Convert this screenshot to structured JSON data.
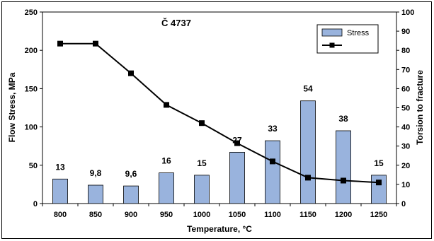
{
  "chart_data": {
    "type": "bar",
    "title": "Č 4737",
    "xlabel": "Temperature, °C",
    "ylabel": "Flow Stress, MPa",
    "y2label": "Torsion to fracture",
    "categories": [
      "800",
      "850",
      "900",
      "950",
      "1000",
      "1050",
      "1100",
      "1150",
      "1200",
      "1250"
    ],
    "ylim": [
      0,
      250
    ],
    "yticks": [
      "0",
      "50",
      "100",
      "150",
      "200",
      "250"
    ],
    "y2lim": [
      0,
      100
    ],
    "y2ticks": [
      "0",
      "10",
      "20",
      "30",
      "40",
      "50",
      "60",
      "70",
      "80",
      "90",
      "100"
    ],
    "legend_position": "top-right",
    "series": [
      {
        "name": "Stress",
        "kind": "bar",
        "axis": "left",
        "color": "#99b3dd",
        "values": [
          32,
          24,
          23,
          40,
          37,
          67,
          82,
          134,
          95,
          37
        ],
        "labels": [
          "13",
          "9,8",
          "9,6",
          "16",
          "15",
          "27",
          "33",
          "54",
          "38",
          "15"
        ]
      },
      {
        "name": "",
        "kind": "line",
        "axis": "right",
        "color": "#000000",
        "values": [
          83.5,
          83.5,
          68,
          51.5,
          42,
          31.5,
          22,
          13.5,
          12,
          11
        ]
      }
    ]
  }
}
